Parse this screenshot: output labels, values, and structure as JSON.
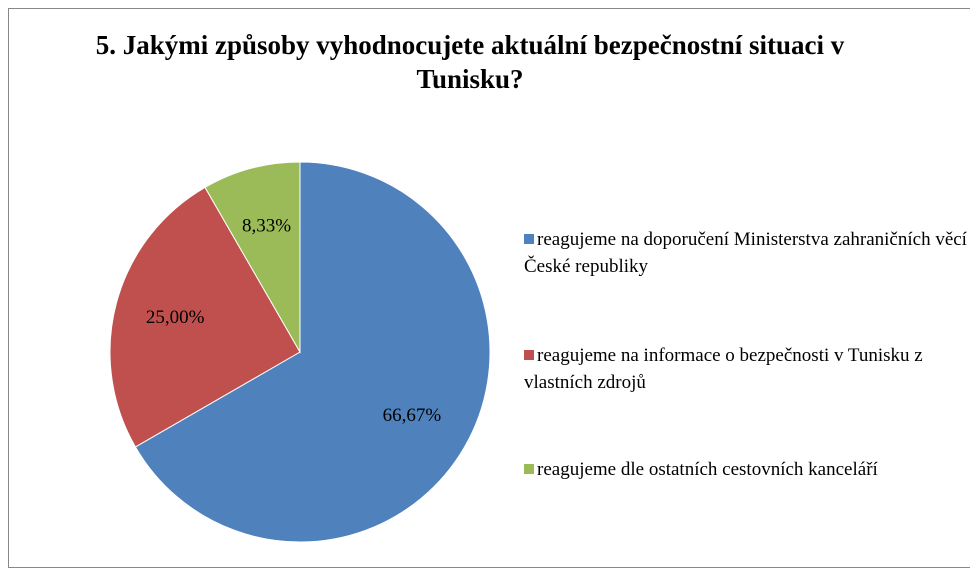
{
  "chart_data": {
    "type": "pie",
    "title": "5. Jakými způsoby vyhodnocujete aktuální bezpečnostní situaci v Tunisku?",
    "categories": [
      "reagujeme na doporučení Ministerstva zahraničních věcí České republiky",
      "reagujeme na informace o bezpečnosti v Tunisku z vlastních zdrojů",
      "reagujeme dle ostatních cestovních kanceláří"
    ],
    "values": [
      66.67,
      25.0,
      8.33
    ],
    "value_labels": [
      "66,67%",
      "25,00%",
      "8,33%"
    ],
    "colors": [
      "#4f81bd",
      "#c0504d",
      "#9bbb59"
    ]
  }
}
